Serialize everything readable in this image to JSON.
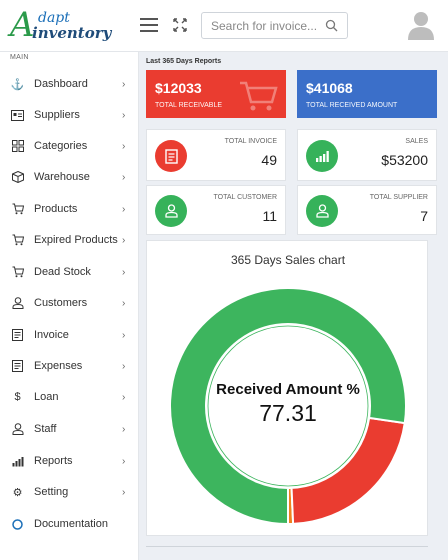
{
  "header": {
    "logo_initial": "A",
    "logo_line1": "dapt",
    "logo_line2": "inventory",
    "search_placeholder": "Search for invoice..."
  },
  "sidebar": {
    "section_label": "MAIN",
    "items": [
      {
        "label": "Dashboard",
        "icon": "anchor-icon",
        "has_chevron": true
      },
      {
        "label": "Suppliers",
        "icon": "id-card-icon",
        "has_chevron": true
      },
      {
        "label": "Categories",
        "icon": "grid-icon",
        "has_chevron": true
      },
      {
        "label": "Warehouse",
        "icon": "box-icon",
        "has_chevron": true
      },
      {
        "label": "Products",
        "icon": "cart-icon",
        "has_chevron": true
      },
      {
        "label": "Expired Products",
        "icon": "cart-icon",
        "has_chevron": true
      },
      {
        "label": "Dead Stock",
        "icon": "cart-icon",
        "has_chevron": true
      },
      {
        "label": "Customers",
        "icon": "user-icon",
        "has_chevron": true
      },
      {
        "label": "Invoice",
        "icon": "document-icon",
        "has_chevron": true
      },
      {
        "label": "Expenses",
        "icon": "document-icon",
        "has_chevron": true
      },
      {
        "label": "Loan",
        "icon": "dollar-icon",
        "has_chevron": true
      },
      {
        "label": "Staff",
        "icon": "user-icon",
        "has_chevron": true
      },
      {
        "label": "Reports",
        "icon": "bar-chart-icon",
        "has_chevron": true
      },
      {
        "label": "Setting",
        "icon": "gear-icon",
        "has_chevron": true
      },
      {
        "label": "Documentation",
        "icon": "circle-icon",
        "has_chevron": false
      }
    ]
  },
  "main": {
    "section_title": "Last 365 Days Reports",
    "receivable": {
      "value": "$12033",
      "label": "TOTAL RECEIVABLE",
      "color": "#ea3c30"
    },
    "received": {
      "value": "$41068",
      "label": "TOTAL RECEIVED AMOUNT",
      "color": "#3b6fc9"
    },
    "cards": {
      "invoice": {
        "label": "TOTAL INVOICE",
        "value": "49"
      },
      "sales": {
        "label": "SALES",
        "value": "$53200"
      },
      "customer": {
        "label": "TOTAL CUSTOMER",
        "value": "11"
      },
      "supplier": {
        "label": "TOTAL SUPPLIER",
        "value": "7"
      }
    },
    "chart_title": "365 Days Sales chart"
  },
  "chart_data": {
    "type": "pie",
    "title": "365 Days Sales chart",
    "center_label": "Received Amount %",
    "center_value": "77.31",
    "slices": [
      {
        "value": 77.31,
        "color": "#3db55e"
      },
      {
        "value": 22.0,
        "color": "#ea3c30"
      },
      {
        "value": 0.69,
        "color": "#f0821e"
      }
    ]
  }
}
